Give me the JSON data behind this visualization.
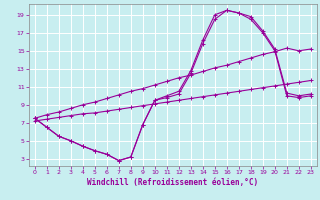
{
  "xlabel": "Windchill (Refroidissement éolien,°C)",
  "bg_color": "#c8eef0",
  "line_color": "#990099",
  "grid_color": "#ffffff",
  "xlim": [
    -0.5,
    23.5
  ],
  "ylim": [
    2.2,
    20.2
  ],
  "xticks": [
    0,
    1,
    2,
    3,
    4,
    5,
    6,
    7,
    8,
    9,
    10,
    11,
    12,
    13,
    14,
    15,
    16,
    17,
    18,
    19,
    20,
    21,
    22,
    23
  ],
  "yticks": [
    3,
    5,
    7,
    9,
    11,
    13,
    15,
    17,
    19
  ],
  "curve1_x": [
    0,
    1,
    2,
    3,
    4,
    5,
    6,
    7,
    8,
    9,
    10,
    11,
    12,
    13,
    14,
    15,
    16,
    17,
    18,
    19,
    20,
    21,
    22,
    23
  ],
  "curve1_y": [
    7.5,
    6.5,
    5.5,
    5.0,
    4.4,
    3.9,
    3.5,
    2.8,
    3.2,
    6.8,
    9.5,
    10.0,
    10.5,
    12.8,
    16.2,
    19.0,
    19.5,
    19.2,
    18.8,
    17.2,
    15.2,
    10.3,
    10.0,
    10.2
  ],
  "curve2_x": [
    0,
    1,
    2,
    3,
    4,
    5,
    6,
    7,
    8,
    9,
    10,
    11,
    12,
    13,
    14,
    15,
    16,
    17,
    18,
    19,
    20,
    21,
    22,
    23
  ],
  "curve2_y": [
    7.5,
    6.5,
    5.5,
    5.0,
    4.4,
    3.9,
    3.5,
    2.8,
    3.2,
    6.8,
    9.5,
    9.8,
    10.2,
    12.5,
    15.8,
    18.5,
    19.5,
    19.2,
    18.5,
    17.0,
    15.0,
    10.0,
    9.8,
    10.0
  ],
  "line3_x": [
    0,
    1,
    2,
    3,
    4,
    5,
    6,
    7,
    8,
    9,
    10,
    11,
    12,
    13,
    14,
    15,
    16,
    17,
    18,
    19,
    20,
    21,
    22,
    23
  ],
  "line3_y": [
    7.2,
    7.4,
    7.6,
    7.8,
    8.0,
    8.1,
    8.3,
    8.5,
    8.7,
    8.9,
    9.1,
    9.3,
    9.5,
    9.7,
    9.9,
    10.1,
    10.3,
    10.5,
    10.7,
    10.9,
    11.1,
    11.3,
    11.5,
    11.7
  ],
  "line4_x": [
    0,
    1,
    2,
    3,
    4,
    5,
    6,
    7,
    8,
    9,
    10,
    11,
    12,
    13,
    14,
    15,
    16,
    17,
    18,
    19,
    20,
    21,
    22,
    23
  ],
  "line4_y": [
    7.5,
    7.9,
    8.2,
    8.6,
    9.0,
    9.3,
    9.7,
    10.1,
    10.5,
    10.8,
    11.2,
    11.6,
    12.0,
    12.3,
    12.7,
    13.1,
    13.4,
    13.8,
    14.2,
    14.6,
    14.9,
    15.3,
    15.0,
    15.2
  ]
}
